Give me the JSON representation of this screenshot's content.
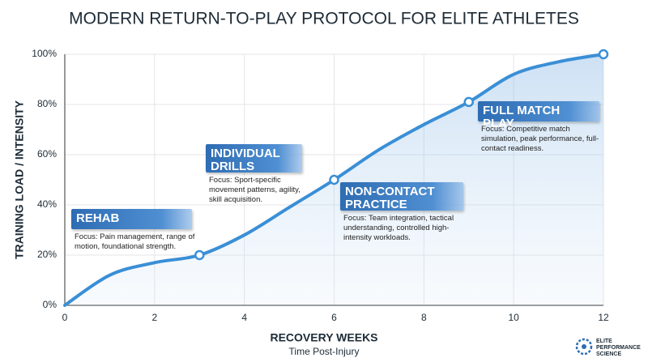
{
  "chart_data": {
    "type": "line",
    "title": "MODERN RETURN-TO-PLAY PROTOCOL FOR ELITE ATHLETES",
    "x_label": "RECOVERY WEEKS",
    "x_sublabel": "Time Post-Injury",
    "y_label": "TRAINING LOAD / INTENSITY",
    "x": [
      0,
      1,
      2,
      3,
      4,
      5,
      6,
      7,
      8,
      9,
      10,
      11,
      12
    ],
    "series": [
      {
        "color": "#3a8fd6",
        "values": [
          0,
          12,
          17,
          20,
          28,
          39,
          50,
          62,
          72,
          81,
          92,
          97,
          100
        ]
      }
    ],
    "milestones": {
      "x": [
        3,
        6,
        9,
        12
      ],
      "values": [
        20,
        50,
        81,
        100
      ]
    },
    "xlim": [
      0,
      12
    ],
    "xticks": [
      0,
      2,
      4,
      6,
      8,
      10,
      12
    ],
    "ylim": [
      0,
      100
    ],
    "yticks": [
      {
        "value": 0,
        "label": "0%"
      },
      {
        "value": 20,
        "label": "20%"
      },
      {
        "value": 40,
        "label": "40%"
      },
      {
        "value": 60,
        "label": "60%"
      },
      {
        "value": 80,
        "label": "80%"
      },
      {
        "value": 100,
        "label": "100%"
      }
    ],
    "grid": true,
    "phases": [
      {
        "title": "REHAB",
        "description": "Focus: Pain management, range of motion, foundational strength."
      },
      {
        "title": "INDIVIDUAL DRILLS",
        "description": "Focus: Sport-specific movement patterns, agility, skill acquisition."
      },
      {
        "title": "NON-CONTACT PRACTICE",
        "description": "Focus: Team integration, tactical understanding, controlled high-intensity workloads."
      },
      {
        "title": "FULL MATCH PLAY",
        "description": "Focus: Competitive match simulation, peak performance, full-contact readiness."
      }
    ],
    "logo": [
      "ELITE",
      "PERFORMANCE",
      "SCIENCE"
    ]
  }
}
